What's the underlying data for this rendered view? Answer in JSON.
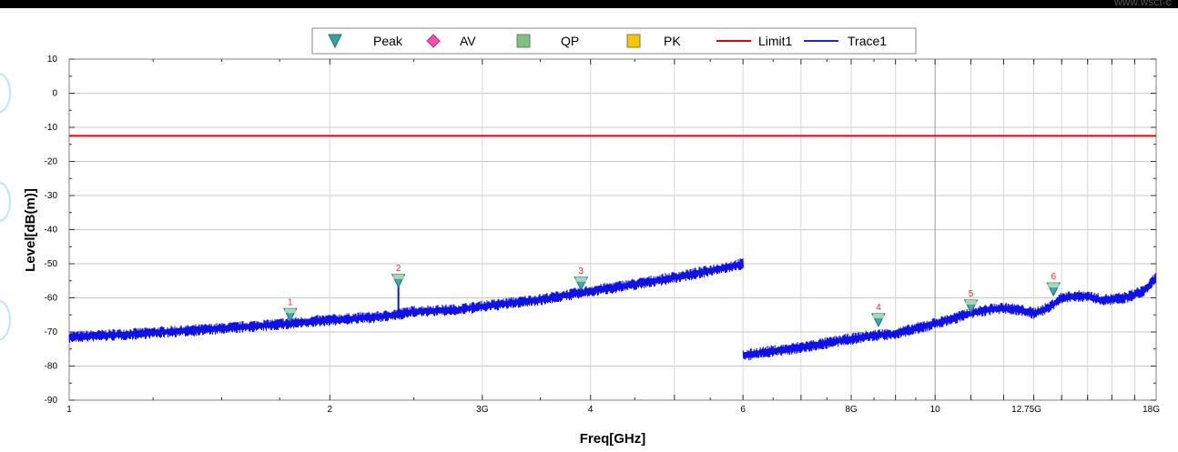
{
  "watermark": "www.wsct-c",
  "chart_data": {
    "type": "line",
    "xlabel": "Freq[GHz]",
    "ylabel": "Level[dB(m)]",
    "x_scale": "log",
    "xlim": [
      1,
      18
    ],
    "ylim": [
      -90,
      10
    ],
    "grid": true,
    "legend_position": "top-center",
    "y_ticks": [
      10,
      0,
      -10,
      -20,
      -30,
      -40,
      -50,
      -60,
      -70,
      -80,
      -90
    ],
    "x_tick_labels": [
      {
        "value": 1,
        "label": "1"
      },
      {
        "value": 2,
        "label": "2"
      },
      {
        "value": 3,
        "label": "3G"
      },
      {
        "value": 4,
        "label": "4"
      },
      {
        "value": 6,
        "label": "6"
      },
      {
        "value": 8,
        "label": "8G"
      },
      {
        "value": 10,
        "label": "10"
      },
      {
        "value": 12.75,
        "label": "12.75G"
      },
      {
        "value": 18,
        "label": "18G"
      }
    ],
    "legend": [
      {
        "label": "Peak",
        "symbol": "triangle-down",
        "color": "#3aa0a8"
      },
      {
        "label": "AV",
        "symbol": "diamond",
        "color": "#f050b0"
      },
      {
        "label": "QP",
        "symbol": "square",
        "color": "#7fbf7f"
      },
      {
        "label": "PK",
        "symbol": "square",
        "color": "#f5c800"
      },
      {
        "label": "Limit1",
        "symbol": "line",
        "color": "#ee0000"
      },
      {
        "label": "Trace1",
        "symbol": "line",
        "color": "#2020e0"
      }
    ],
    "limit_line": {
      "name": "Limit1",
      "value": -12.5,
      "color": "#ee0000"
    },
    "series": [
      {
        "name": "Trace1",
        "color": "#1010e8",
        "segments": [
          {
            "x": [
              1.0,
              1.2,
              1.5,
              1.8,
              2.0,
              2.3,
              2.5,
              2.8,
              3.0,
              3.5,
              4.0,
              4.5,
              5.0,
              5.5,
              6.0
            ],
            "y": [
              -71.5,
              -70.5,
              -69,
              -67.5,
              -66.5,
              -65.5,
              -64,
              -63.5,
              -62.5,
              -60.5,
              -58,
              -56,
              -54,
              -52,
              -50
            ]
          },
          {
            "x": [
              6.0,
              6.3,
              6.8,
              7.2,
              7.6,
              8.0,
              8.5,
              9.0,
              9.5,
              10.0,
              10.5,
              11.0,
              11.5,
              12.0,
              12.5,
              13.0,
              13.5,
              14.0,
              14.5,
              15.0,
              15.5,
              16.0,
              16.5,
              17.0,
              17.5,
              18.0
            ],
            "y": [
              -77,
              -76,
              -75,
              -74,
              -73,
              -72,
              -71,
              -70.5,
              -69,
              -67.5,
              -66,
              -64.5,
              -63.5,
              -63,
              -63.5,
              -64.5,
              -63,
              -60,
              -59.5,
              -59.5,
              -60.5,
              -60.5,
              -60,
              -59,
              -57.5,
              -54
            ]
          }
        ],
        "spikes": [
          {
            "x": 2.4,
            "y": -56
          }
        ]
      }
    ],
    "markers": [
      {
        "id": "1",
        "x": 1.8,
        "y": -65
      },
      {
        "id": "2",
        "x": 2.4,
        "y": -55
      },
      {
        "id": "3",
        "x": 3.9,
        "y": -55.8
      },
      {
        "id": "4",
        "x": 8.6,
        "y": -66.5
      },
      {
        "id": "5",
        "x": 11.0,
        "y": -62.5
      },
      {
        "id": "6",
        "x": 13.7,
        "y": -57.5
      }
    ]
  }
}
